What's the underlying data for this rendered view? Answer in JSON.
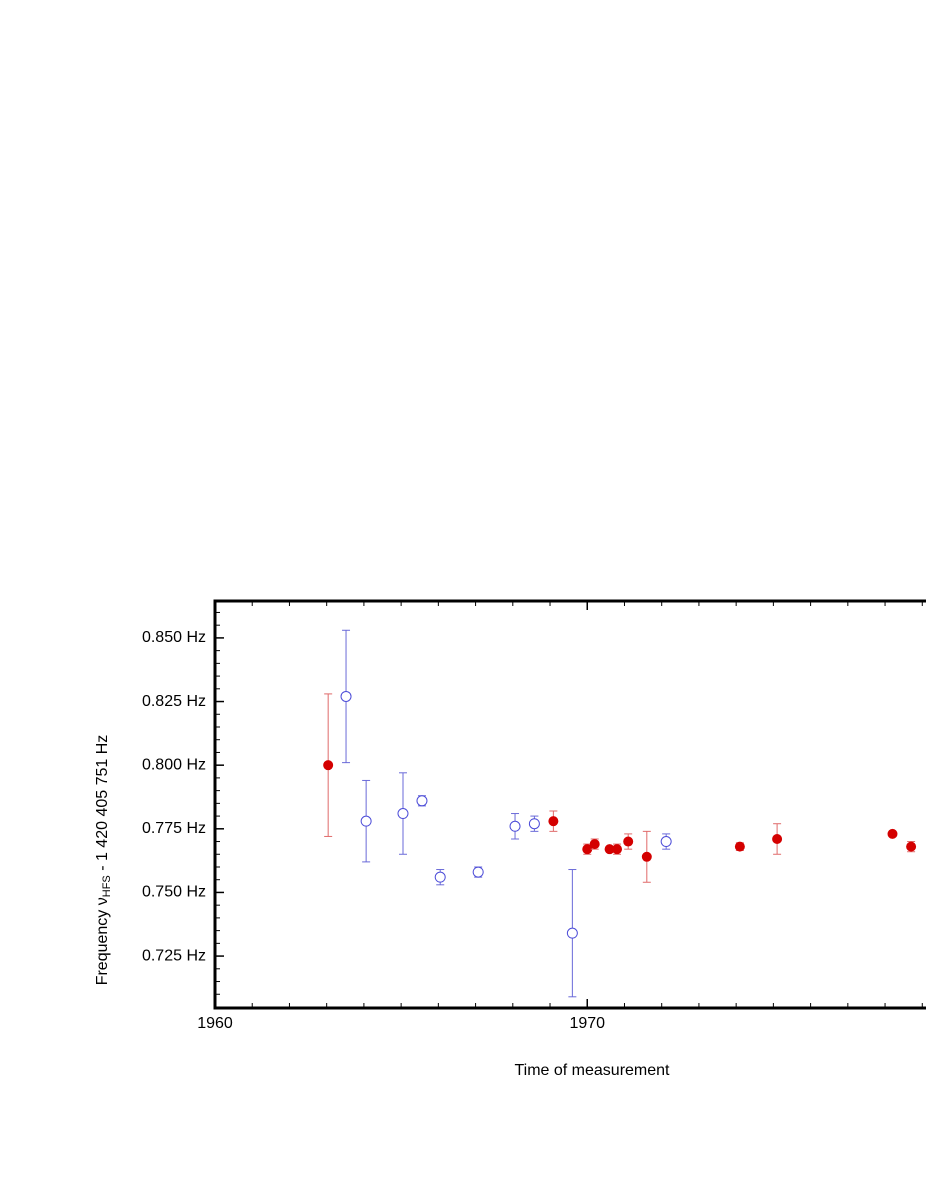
{
  "chart_data": {
    "type": "scatter",
    "y_label": {
      "main": "Frequency  ν",
      "sub": "HFS",
      "rest": " - 1 420 405 751 Hz"
    },
    "x_label": "Time of measurement",
    "xlim": [
      1960,
      1979.1
    ],
    "ylim": [
      0.7046,
      0.8645
    ],
    "xticks": [
      1960,
      1970
    ],
    "xminorticks": [
      1961,
      1962,
      1963,
      1964,
      1965,
      1966,
      1967,
      1968,
      1969,
      1971,
      1972,
      1973,
      1974,
      1975,
      1976,
      1977,
      1978,
      1979
    ],
    "yticks": [
      {
        "value": 0.725,
        "label": "0.725 Hz"
      },
      {
        "value": 0.75,
        "label": "0.750 Hz"
      },
      {
        "value": 0.775,
        "label": "0.775 Hz"
      },
      {
        "value": 0.8,
        "label": "0.800 Hz"
      },
      {
        "value": 0.825,
        "label": "0.825 Hz"
      },
      {
        "value": 0.85,
        "label": "0.850 Hz"
      }
    ],
    "yminorticks": [
      0.705,
      0.71,
      0.715,
      0.72,
      0.73,
      0.735,
      0.74,
      0.745,
      0.755,
      0.76,
      0.765,
      0.77,
      0.78,
      0.785,
      0.79,
      0.795,
      0.805,
      0.81,
      0.815,
      0.82,
      0.83,
      0.835,
      0.84,
      0.845,
      0.855,
      0.86
    ],
    "series": [
      {
        "color": "#d40000",
        "error_color": "#e06a6a",
        "marker": "filled",
        "x": [
          1963.04,
          1969.09,
          1970.0,
          1970.2,
          1970.6,
          1970.8,
          1971.1,
          1971.6,
          1974.1,
          1975.1,
          1978.2,
          1978.7
        ],
        "values": [
          0.8,
          0.778,
          0.767,
          0.769,
          0.767,
          0.767,
          0.77,
          0.764,
          0.768,
          0.771,
          0.773,
          0.768
        ],
        "errors": [
          0.028,
          0.004,
          0.002,
          0.002,
          0,
          0.002,
          0.003,
          0.01,
          0.0015,
          0.006,
          0,
          0.002
        ]
      },
      {
        "color": "#4c4cd8",
        "error_color": "#6a6ad8",
        "marker": "open",
        "x": [
          1963.52,
          1964.06,
          1965.05,
          1965.56,
          1966.05,
          1967.07,
          1968.06,
          1968.58,
          1969.6,
          1972.12
        ],
        "values": [
          0.827,
          0.778,
          0.781,
          0.786,
          0.756,
          0.758,
          0.776,
          0.777,
          0.734,
          0.77
        ],
        "errors": [
          0.026,
          0.016,
          0.016,
          0.002,
          0.003,
          0.002,
          0.005,
          0.003,
          0.025,
          0.003
        ]
      }
    ]
  }
}
